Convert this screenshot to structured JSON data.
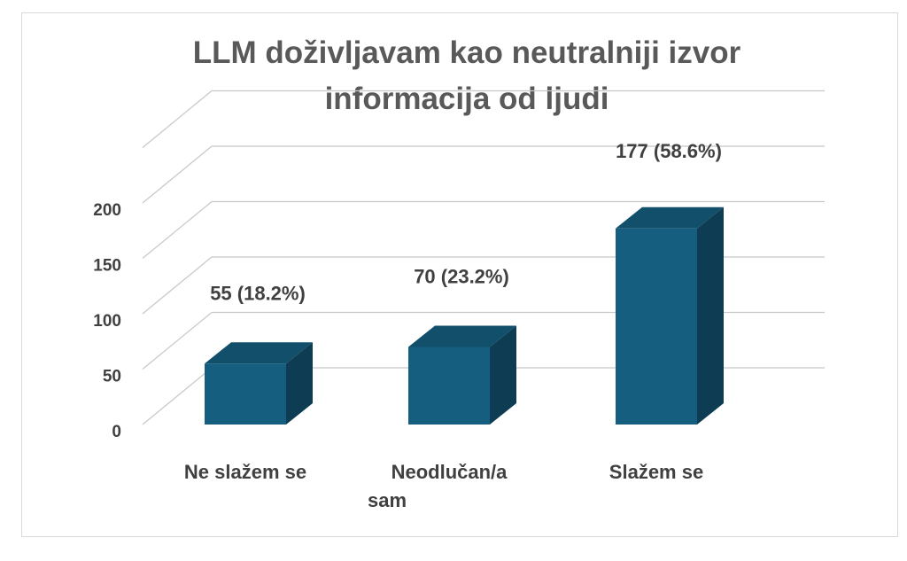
{
  "chart_data": {
    "type": "bar",
    "title": "LLM doživljavam kao neutralniji izvor informacija od ljudi",
    "title_lines": [
      "LLM doživljavam kao neutralniji izvor",
      "informacija od ljudi"
    ],
    "categories": [
      "Ne slažem se",
      "Neodlučan/a sam",
      "Slažem se"
    ],
    "category_lines": [
      [
        "Ne slažem se"
      ],
      [
        "Neodlučan/a",
        "sam"
      ],
      [
        "Slažem se"
      ]
    ],
    "values": [
      55,
      70,
      177
    ],
    "data_labels": [
      "55 (18.2%)",
      "70 (23.2%)",
      "177 (58.6%)"
    ],
    "yticks": [
      0,
      50,
      100,
      150,
      200
    ],
    "ylim": [
      0,
      250
    ],
    "grid": true,
    "legend": "none",
    "three_d": true,
    "colors": {
      "bar_front": "#155e80",
      "bar_top": "#114f6b",
      "bar_side": "#0d3c53",
      "title": "#595959",
      "text": "#404040",
      "grid": "#c8c8c8"
    }
  }
}
